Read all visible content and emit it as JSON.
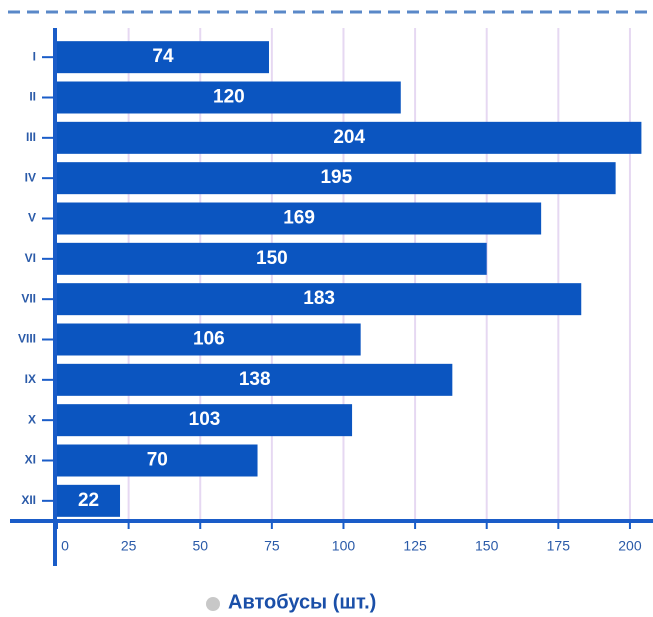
{
  "chart_data": {
    "type": "bar",
    "orientation": "horizontal",
    "categories": [
      "I",
      "II",
      "III",
      "IV",
      "V",
      "VI",
      "VII",
      "VIII",
      "IX",
      "X",
      "XI",
      "XII"
    ],
    "series": [
      {
        "name": "Автобусы (шт.)",
        "color": "#0b55c0",
        "values": [
          74,
          120,
          204,
          195,
          169,
          150,
          183,
          106,
          138,
          103,
          70,
          22
        ]
      }
    ],
    "xlim": [
      0,
      207
    ],
    "xticks": [
      0,
      25,
      50,
      75,
      100,
      125,
      150,
      175,
      200
    ],
    "grid": true,
    "legend": "bottom"
  }
}
